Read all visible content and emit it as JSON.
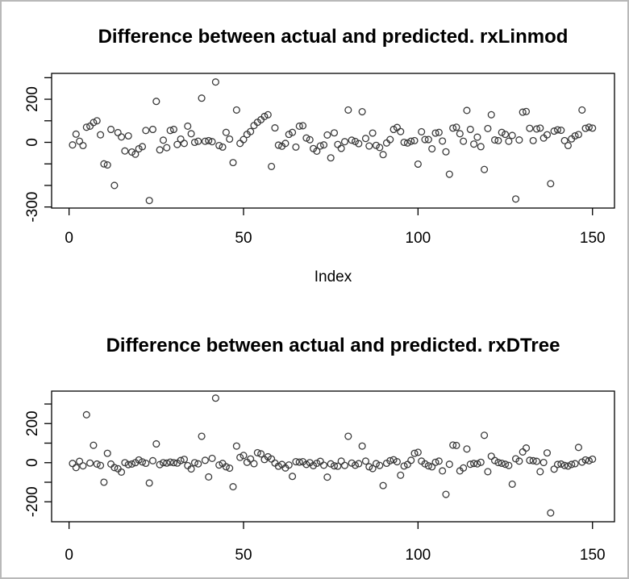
{
  "page": {
    "background_color": "#ffffff",
    "border_color": "#b9b9b9",
    "point_color": "#3a3a3a",
    "axis_color": "#000000"
  },
  "chart_data": [
    {
      "type": "scatter",
      "title": "Difference between actual and predicted. rxLinmod",
      "xlabel": "Index",
      "ylabel": "",
      "marker": "open-circle",
      "grid": false,
      "x_start": 1,
      "xlim": [
        -5.0,
        156.3
      ],
      "ylim": [
        -305,
        320
      ],
      "xticks": [
        0,
        50,
        100,
        150
      ],
      "xtick_labels": [
        "0",
        "50",
        "100",
        "150"
      ],
      "yticks": [
        300,
        200,
        100,
        0,
        -100,
        -200,
        -300
      ],
      "ytick_labels": [
        "",
        "200",
        "",
        "0",
        "",
        "",
        "-300"
      ],
      "values": [
        -12,
        38,
        5,
        -15,
        70,
        75,
        92,
        100,
        35,
        -100,
        -105,
        60,
        -200,
        45,
        25,
        -40,
        30,
        -45,
        -55,
        -30,
        -20,
        55,
        -270,
        60,
        190,
        -35,
        10,
        -25,
        55,
        60,
        -10,
        15,
        -5,
        75,
        40,
        0,
        5,
        205,
        5,
        8,
        3,
        280,
        -15,
        -22,
        46,
        15,
        -94,
        150,
        -5,
        13,
        37,
        50,
        78,
        93,
        105,
        120,
        128,
        -112,
        67,
        -13,
        -18,
        -5,
        37,
        46,
        -22,
        75,
        77,
        20,
        12,
        -29,
        -41,
        -17,
        -12,
        34,
        -72,
        44,
        -10,
        -28,
        3,
        150,
        10,
        4,
        -6,
        142,
        18,
        -17,
        43,
        -14,
        -24,
        -57,
        -3,
        13,
        60,
        69,
        50,
        0,
        -3,
        5,
        8,
        -101,
        49,
        13,
        13,
        -30,
        43,
        46,
        6,
        -44,
        -148,
        66,
        70,
        40,
        5,
        148,
        60,
        -8,
        24,
        -20,
        -126,
        64,
        128,
        11,
        8,
        46,
        37,
        5,
        32,
        -263,
        11,
        140,
        143,
        65,
        8,
        62,
        66,
        20,
        35,
        -192,
        52,
        58,
        56,
        8,
        -15,
        16,
        30,
        36,
        150,
        65,
        70,
        66
      ]
    },
    {
      "type": "scatter",
      "title": "Difference between actual and predicted. rxDTree",
      "xlabel": "",
      "ylabel": "",
      "marker": "open-circle",
      "grid": false,
      "x_start": 1,
      "xlim": [
        -5.0,
        156.3
      ],
      "ylim": [
        -302,
        366
      ],
      "xticks": [
        0,
        50,
        100,
        150
      ],
      "xtick_labels": [
        "0",
        "50",
        "100",
        "150"
      ],
      "yticks": [
        300,
        200,
        100,
        0,
        -100,
        -200
      ],
      "ytick_labels": [
        "",
        "200",
        "",
        "0",
        "",
        "-200"
      ],
      "values": [
        -4,
        -25,
        7,
        -16,
        245,
        -2,
        89,
        -7,
        -14,
        -100,
        48,
        -7,
        -25,
        -31,
        -48,
        0,
        -10,
        -7,
        0,
        14,
        4,
        -3,
        -104,
        10,
        96,
        -10,
        0,
        -2,
        3,
        0,
        -2,
        11,
        17,
        -15,
        -32,
        0,
        -6,
        135,
        12,
        -73,
        22,
        330,
        -12,
        -4,
        -21,
        -28,
        -123,
        85,
        27,
        37,
        2,
        19,
        -5,
        51,
        45,
        16,
        30,
        19,
        -2,
        -18,
        -9,
        -27,
        -12,
        -70,
        5,
        3,
        5,
        -9,
        0,
        -15,
        -3,
        7,
        -13,
        -74,
        -6,
        -16,
        -18,
        8,
        -14,
        135,
        -2,
        -13,
        -5,
        85,
        8,
        -21,
        -30,
        -5,
        -14,
        -117,
        -3,
        10,
        15,
        5,
        -64,
        -17,
        -9,
        12,
        48,
        53,
        8,
        -6,
        -16,
        -21,
        2,
        8,
        -42,
        -162,
        -8,
        90,
        88,
        -42,
        -27,
        70,
        -8,
        -4,
        -6,
        2,
        140,
        -46,
        33,
        11,
        1,
        -3,
        -8,
        -14,
        -110,
        20,
        8,
        55,
        75,
        12,
        10,
        7,
        -46,
        1,
        50,
        -257,
        -33,
        -9,
        -7,
        -14,
        -17,
        -9,
        -5,
        78,
        3,
        14,
        10,
        18
      ]
    }
  ]
}
